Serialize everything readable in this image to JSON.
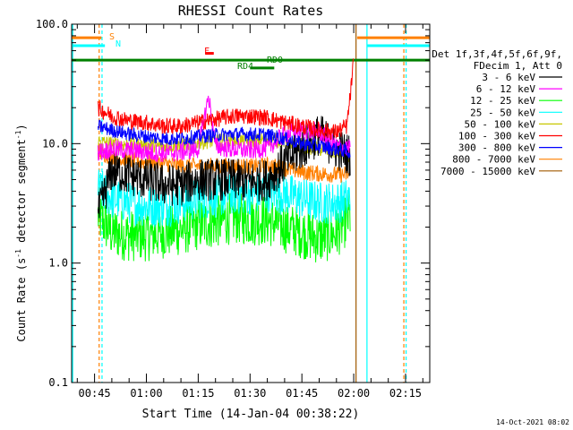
{
  "chart_data": {
    "type": "line",
    "title": "RHESSI Count Rates",
    "xlabel": "Start Time (14-Jan-04 00:38:22)",
    "ylabel_main": "Count Rate (s",
    "ylabel_sup1": "-1",
    "ylabel_mid": " detector segment",
    "ylabel_sup2": "-1",
    "ylabel_end": ")",
    "yscale": "log",
    "ylim": [
      0.1,
      100
    ],
    "xlim": [
      "00:38:22",
      "02:22:00"
    ],
    "x_ticks": [
      "00:45",
      "01:00",
      "01:15",
      "01:30",
      "01:45",
      "02:00",
      "02:15"
    ],
    "y_ticks": [
      "100.0",
      "10.0",
      "1.0",
      "0.1"
    ],
    "grid": false,
    "legend_position": "right",
    "legend_header": [
      "Det 1f,3f,4f,5f,6f,9f,",
      "FDecim 1, Att 0"
    ],
    "series": [
      {
        "name": "3 - 6 keV",
        "color": "#000000",
        "x": [
          "00:46",
          "00:50",
          "00:55",
          "01:00",
          "01:05",
          "01:10",
          "01:15",
          "01:20",
          "01:25",
          "01:30",
          "01:35",
          "01:40",
          "01:45",
          "01:50",
          "01:55",
          "01:59"
        ],
        "values": [
          2.5,
          6.0,
          5.5,
          5.0,
          4.5,
          4.5,
          5.0,
          5.0,
          5.0,
          4.8,
          5.0,
          7.0,
          9.0,
          12.0,
          9.0,
          8.0
        ]
      },
      {
        "name": "6 - 12 keV",
        "color": "#ff00ff",
        "x": [
          "00:46",
          "00:50",
          "00:55",
          "01:00",
          "01:05",
          "01:10",
          "01:15",
          "01:18",
          "01:20",
          "01:25",
          "01:30",
          "01:35",
          "01:40",
          "01:45",
          "01:50",
          "01:55",
          "01:59"
        ],
        "values": [
          8.5,
          9.0,
          8.8,
          8.5,
          8.3,
          8.5,
          9.0,
          25.0,
          9.5,
          9.0,
          8.8,
          9.2,
          12.0,
          13.0,
          12.5,
          9.5,
          9.0
        ]
      },
      {
        "name": "12 - 25 keV",
        "color": "#00ff00",
        "x": [
          "00:46",
          "00:50",
          "00:55",
          "01:00",
          "01:05",
          "01:10",
          "01:15",
          "01:20",
          "01:25",
          "01:30",
          "01:35",
          "01:40",
          "01:45",
          "01:50",
          "01:55",
          "01:59"
        ],
        "values": [
          2.5,
          1.8,
          1.7,
          1.7,
          1.8,
          1.9,
          2.1,
          2.2,
          2.4,
          2.3,
          2.3,
          2.0,
          1.8,
          1.6,
          1.8,
          2.5
        ]
      },
      {
        "name": "25 - 50 keV",
        "color": "#00ffff",
        "x": [
          "00:46",
          "00:50",
          "00:55",
          "01:00",
          "01:05",
          "01:10",
          "01:15",
          "01:20",
          "01:25",
          "01:30",
          "01:35",
          "01:40",
          "01:45",
          "01:50",
          "01:55",
          "01:59"
        ],
        "values": [
          4.2,
          3.5,
          3.2,
          3.0,
          3.0,
          3.2,
          3.5,
          3.6,
          3.8,
          3.8,
          4.0,
          3.8,
          3.5,
          3.2,
          3.2,
          3.5
        ]
      },
      {
        "name": "50 - 100 keV",
        "color": "#c8c800",
        "x": [
          "00:46",
          "00:50",
          "00:55",
          "01:00",
          "01:05",
          "01:10",
          "01:15",
          "01:20",
          "01:25",
          "01:30",
          "01:35",
          "01:40",
          "01:45",
          "01:50",
          "01:55",
          "01:59"
        ],
        "values": [
          10.5,
          10.0,
          9.8,
          9.8,
          9.5,
          9.8,
          10.2,
          10.5,
          10.8,
          10.5,
          11.0,
          10.5,
          9.5,
          9.0,
          8.5,
          8.0
        ]
      },
      {
        "name": "100 - 300 keV",
        "color": "#ff0000",
        "x": [
          "00:46",
          "00:50",
          "00:55",
          "01:00",
          "01:05",
          "01:10",
          "01:15",
          "01:20",
          "01:25",
          "01:30",
          "01:35",
          "01:40",
          "01:45",
          "01:50",
          "01:55",
          "01:58",
          "01:59",
          "02:00"
        ],
        "values": [
          20.0,
          17.0,
          15.5,
          15.0,
          14.0,
          14.0,
          15.0,
          16.0,
          17.0,
          17.0,
          16.5,
          15.0,
          14.0,
          13.0,
          12.5,
          14.0,
          25.0,
          50.0
        ]
      },
      {
        "name": "300 - 800 keV",
        "color": "#0000ff",
        "x": [
          "00:46",
          "00:50",
          "00:55",
          "01:00",
          "01:05",
          "01:10",
          "01:15",
          "01:20",
          "01:25",
          "01:30",
          "01:35",
          "01:40",
          "01:45",
          "01:50",
          "01:55",
          "01:59"
        ],
        "values": [
          14.0,
          13.0,
          12.0,
          11.5,
          11.0,
          11.0,
          11.5,
          11.8,
          12.0,
          12.0,
          11.8,
          11.0,
          10.0,
          9.5,
          9.0,
          8.5
        ]
      },
      {
        "name": "800 - 7000 keV",
        "color": "#ff8000",
        "x": [
          "00:46",
          "00:50",
          "00:55",
          "01:00",
          "01:05",
          "01:10",
          "01:15",
          "01:20",
          "01:25",
          "01:30",
          "01:35",
          "01:40",
          "01:45",
          "01:50",
          "01:55",
          "01:59"
        ],
        "values": [
          8.5,
          7.8,
          7.2,
          7.0,
          6.8,
          6.6,
          6.5,
          6.5,
          6.5,
          6.4,
          6.6,
          6.2,
          5.8,
          5.6,
          5.5,
          5.5
        ]
      },
      {
        "name": "7000 - 15000 keV",
        "color": "#a05a00",
        "x": [],
        "values": []
      }
    ],
    "annotations": [
      {
        "label": "S",
        "color": "#ff8000"
      },
      {
        "label": "N",
        "color": "#00ffff"
      },
      {
        "label": "F",
        "color": "#ff0000"
      },
      {
        "label": "RD0",
        "color": "#008000"
      },
      {
        "label": "RD4",
        "color": "#008000"
      }
    ],
    "footer_timestamp": "14-Oct-2021 08:02"
  }
}
